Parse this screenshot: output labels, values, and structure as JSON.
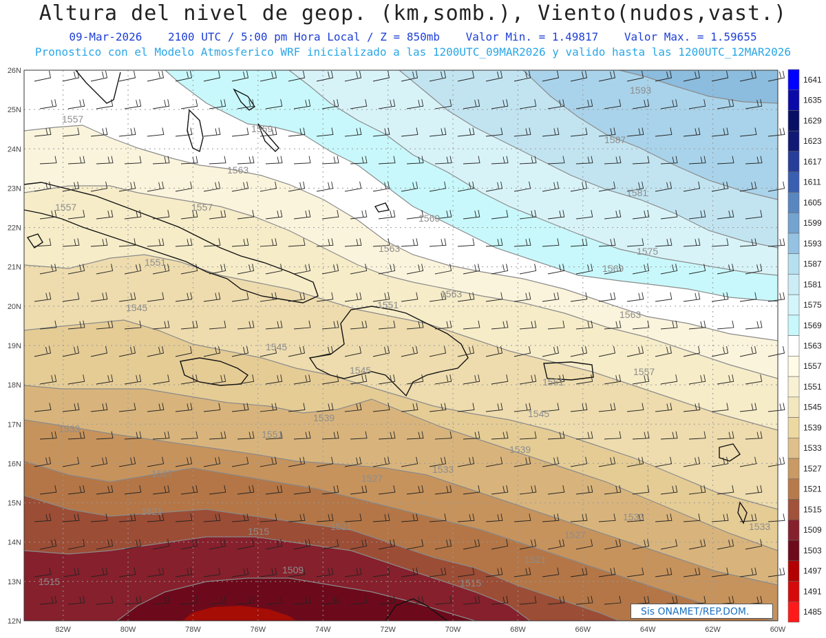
{
  "header": {
    "title": "Altura del nivel de geop. (km,somb.), Viento(nudos,vast.)",
    "date": "09-Mar-2026",
    "time": "2100 UTC / 5:00 pm Hora Local / Z = 850mb",
    "val_min": "Valor Min. = 1.49817",
    "val_max": "Valor Max. = 1.59655",
    "forecast": "Pronostico con el Modelo Atmosferico WRF inicializado a las 1200UTC_09MAR2026 y valido hasta las  1200UTC_12MAR2026"
  },
  "map": {
    "lon_labels": [
      "82W",
      "80W",
      "78W",
      "76W",
      "74W",
      "72W",
      "70W",
      "68W",
      "66W",
      "64W",
      "62W",
      "60W"
    ],
    "lat_labels": [
      "26N",
      "25N",
      "24N",
      "23N",
      "22N",
      "21N",
      "20N",
      "19N",
      "18N",
      "17N",
      "16N",
      "15N",
      "14N",
      "13N",
      "12N"
    ],
    "lon_range": [
      -83.2,
      -60
    ],
    "lat_range": [
      12,
      26
    ],
    "contour_labels": [
      "1593",
      "1587",
      "1581",
      "1575",
      "1569",
      "1563",
      "1569",
      "1563",
      "1557",
      "1563",
      "1569",
      "1557",
      "1551",
      "1557",
      "1551",
      "1545",
      "1551",
      "1545",
      "1545",
      "1539",
      "1545",
      "1557",
      "1551",
      "1533",
      "1539",
      "1533",
      "1527",
      "1527",
      "1533",
      "1521",
      "1521",
      "1533",
      "1515",
      "1527",
      "1521",
      "1509",
      "1515",
      "1515",
      "1563"
    ]
  },
  "legend": {
    "levels": [
      1641,
      1635,
      1629,
      1623,
      1617,
      1611,
      1605,
      1599,
      1593,
      1587,
      1581,
      1575,
      1569,
      1563,
      1557,
      1551,
      1545,
      1539,
      1533,
      1527,
      1521,
      1515,
      1509,
      1503,
      1497,
      1491,
      1485
    ],
    "colors": [
      "#0000ff",
      "#0a0aa8",
      "#081065",
      "#101a75",
      "#263d9a",
      "#3a5fb0",
      "#5a86c0",
      "#74a3cf",
      "#95c2e2",
      "#b6e0ef",
      "#ccedf6",
      "#d4f5fa",
      "#c8f8fb",
      "#ffffff",
      "#fffbe6",
      "#f8f1d3",
      "#f3e7bf",
      "#ecd9a2",
      "#dfc08a",
      "#c99a63",
      "#b77a4c",
      "#a0523a",
      "#85202d",
      "#6d0a1c",
      "#b30000",
      "#d60a0a",
      "#ff1a1a"
    ]
  },
  "credit": "Sis     ONAMET/REP.DOM."
}
